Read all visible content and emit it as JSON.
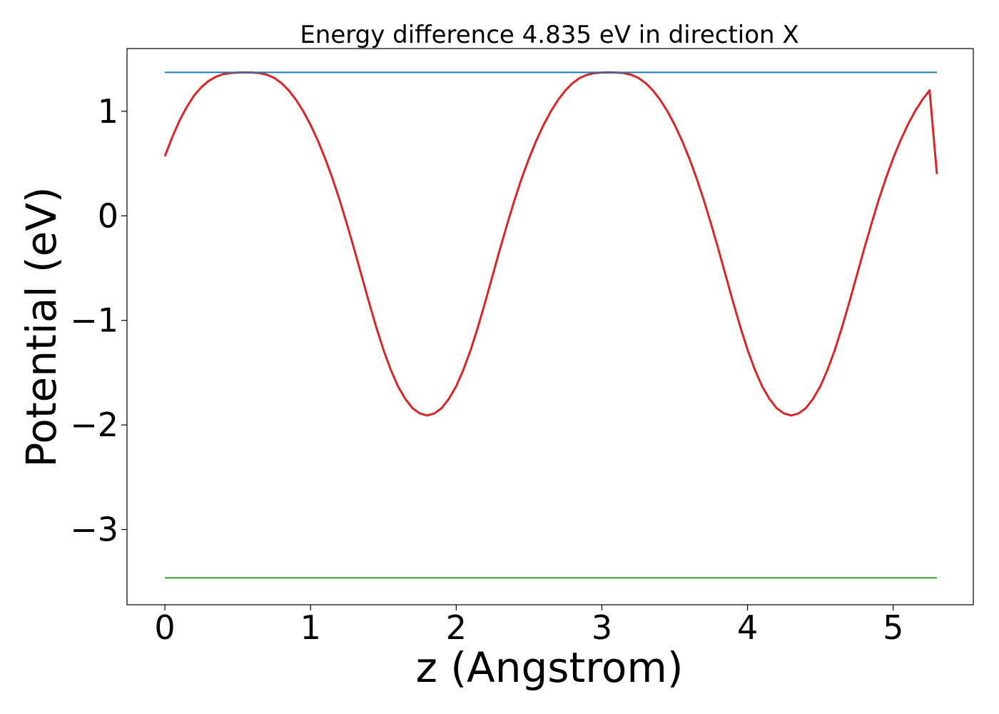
{
  "chart_data": {
    "type": "line",
    "title": "Energy difference 4.835 eV in direction X",
    "xlabel": "z (Angstrom)",
    "ylabel": "Potential (eV)",
    "xlim": [
      -0.26,
      5.55
    ],
    "ylim": [
      -3.72,
      1.6
    ],
    "xticks": [
      0,
      1,
      2,
      3,
      4,
      5
    ],
    "xtick_labels": [
      "0",
      "1",
      "2",
      "3",
      "4",
      "5"
    ],
    "yticks": [
      -3,
      -2,
      -1,
      0,
      1
    ],
    "ytick_labels": [
      "−3",
      "−2",
      "−1",
      "0",
      "1"
    ],
    "grid": false,
    "colors": {
      "potential": "#d62728",
      "upper": "#1f77b4",
      "lower": "#2ca02c"
    },
    "series": [
      {
        "x": [
          0.0,
          0.05,
          0.1,
          0.15,
          0.2,
          0.25,
          0.3,
          0.35,
          0.4,
          0.45,
          0.5,
          0.55,
          0.6,
          0.65,
          0.7,
          0.75,
          0.8,
          0.85,
          0.9,
          0.95,
          1.0,
          1.05,
          1.1,
          1.15,
          1.2,
          1.25,
          1.3,
          1.35,
          1.4,
          1.45,
          1.5,
          1.55,
          1.6,
          1.65,
          1.7,
          1.75,
          1.8,
          1.85,
          1.9,
          1.95,
          2.0,
          2.05,
          2.1,
          2.15,
          2.2,
          2.25,
          2.3,
          2.35,
          2.4,
          2.45,
          2.5,
          2.55,
          2.6,
          2.65,
          2.7,
          2.75,
          2.8,
          2.85,
          2.9,
          2.95,
          3.0,
          3.05,
          3.1,
          3.15,
          3.2,
          3.25,
          3.3,
          3.35,
          3.4,
          3.45,
          3.5,
          3.55,
          3.6,
          3.65,
          3.7,
          3.75,
          3.8,
          3.85,
          3.9,
          3.95,
          4.0,
          4.05,
          4.1,
          4.15,
          4.2,
          4.25,
          4.3,
          4.35,
          4.4,
          4.45,
          4.5,
          4.55,
          4.6,
          4.65,
          4.7,
          4.75,
          4.8,
          4.85,
          4.9,
          4.95,
          5.0,
          5.05,
          5.1,
          5.15,
          5.2,
          5.25,
          5.3
        ],
        "y": [
          0.57,
          0.75,
          0.91,
          1.04,
          1.15,
          1.23,
          1.29,
          1.33,
          1.355,
          1.365,
          1.37,
          1.372,
          1.37,
          1.365,
          1.35,
          1.32,
          1.27,
          1.2,
          1.11,
          1.0,
          0.87,
          0.72,
          0.55,
          0.36,
          0.15,
          -0.08,
          -0.32,
          -0.57,
          -0.82,
          -1.06,
          -1.28,
          -1.47,
          -1.63,
          -1.75,
          -1.84,
          -1.89,
          -1.91,
          -1.89,
          -1.84,
          -1.75,
          -1.63,
          -1.47,
          -1.28,
          -1.06,
          -0.82,
          -0.57,
          -0.32,
          -0.08,
          0.15,
          0.36,
          0.55,
          0.72,
          0.87,
          1.0,
          1.11,
          1.2,
          1.27,
          1.32,
          1.35,
          1.365,
          1.37,
          1.372,
          1.37,
          1.365,
          1.35,
          1.32,
          1.27,
          1.2,
          1.11,
          1.0,
          0.87,
          0.72,
          0.55,
          0.36,
          0.15,
          -0.08,
          -0.32,
          -0.57,
          -0.82,
          -1.06,
          -1.28,
          -1.47,
          -1.63,
          -1.75,
          -1.84,
          -1.89,
          -1.91,
          -1.89,
          -1.84,
          -1.75,
          -1.63,
          -1.47,
          -1.28,
          -1.06,
          -0.82,
          -0.57,
          -0.32,
          -0.08,
          0.15,
          0.36,
          0.55,
          0.72,
          0.87,
          1.0,
          1.11,
          1.2,
          0.4
        ]
      },
      {
        "x": [
          0.0,
          5.3
        ],
        "y": [
          1.372,
          1.372
        ]
      },
      {
        "x": [
          0.0,
          5.3
        ],
        "y": [
          -3.463,
          -3.463
        ]
      }
    ]
  }
}
